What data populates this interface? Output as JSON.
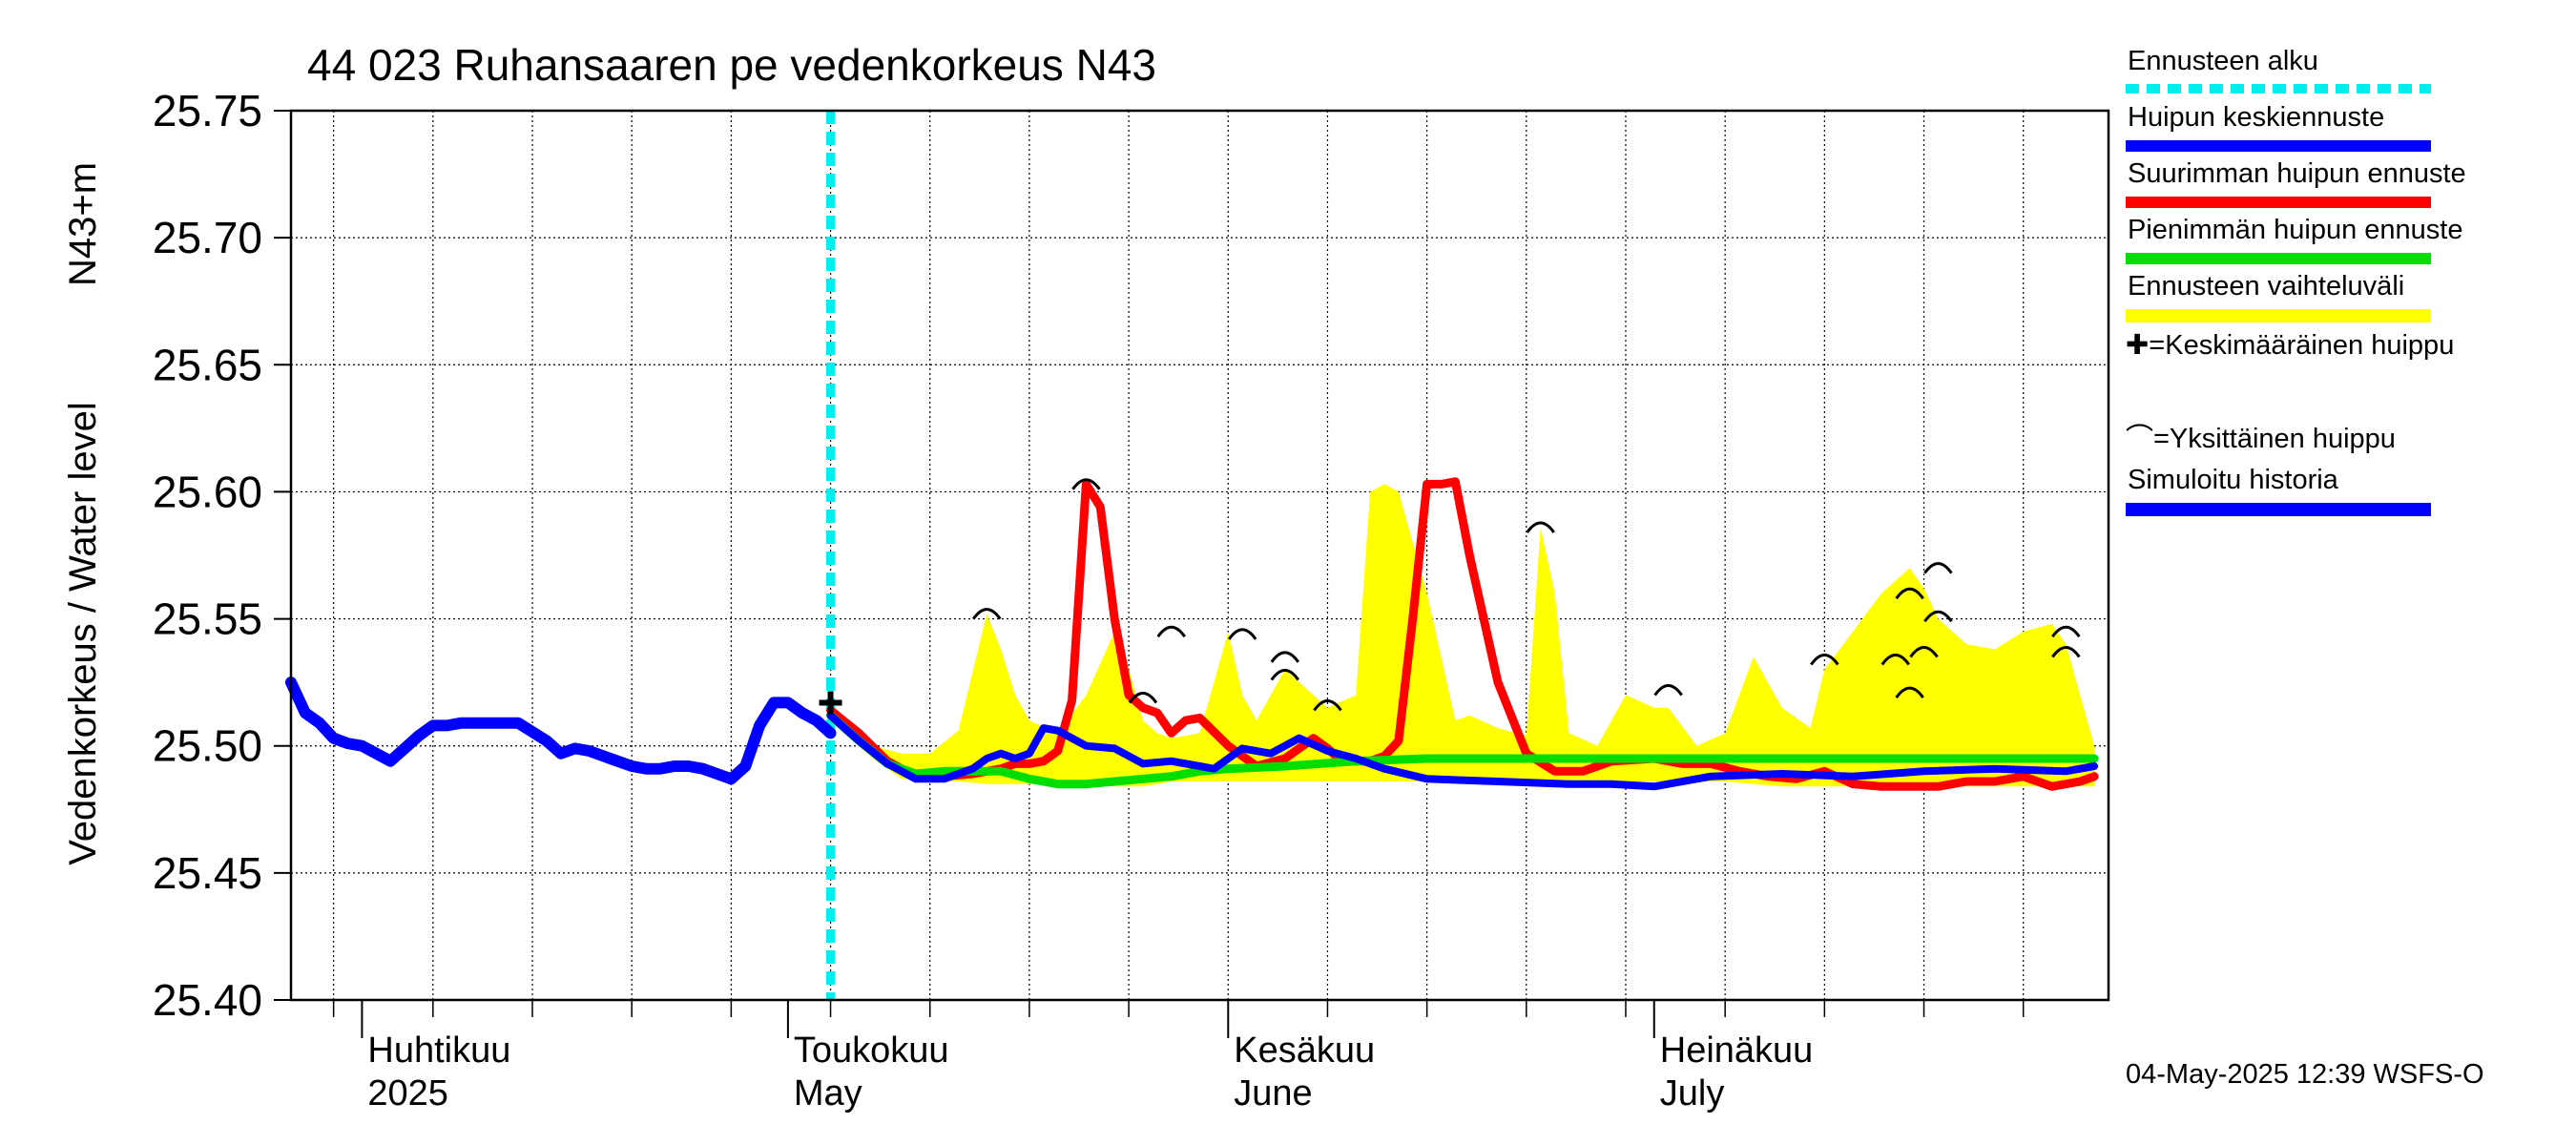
{
  "chart_data": {
    "type": "line",
    "title": "44 023 Ruhansaaren pe vedenkorkeus N43",
    "ylabel_left": "Vedenkorkeus / Water level",
    "ylabel_right": "N43+m",
    "ylim": [
      25.4,
      25.75
    ],
    "yticks": [
      "25.40",
      "25.45",
      "25.50",
      "25.55",
      "25.60",
      "25.65",
      "25.70",
      "25.75"
    ],
    "xlim": [
      "2025-03-27",
      "2025-08-02"
    ],
    "month_labels": [
      {
        "date": "2025-04-01",
        "fi": "Huhtikuu",
        "en": "2025"
      },
      {
        "date": "2025-05-01",
        "fi": "Toukokuu",
        "en": "May"
      },
      {
        "date": "2025-06-01",
        "fi": "Kesäkuu",
        "en": "June"
      },
      {
        "date": "2025-07-01",
        "fi": "Heinäkuu",
        "en": "July"
      }
    ],
    "grid": true,
    "forecast_start": "2025-05-04",
    "colors": {
      "forecast_start": "#00eeee",
      "mean_peak": "#0000ff",
      "max_peak": "#ff0000",
      "min_peak": "#00dd00",
      "range": "#ffff00",
      "history": "#0000ff"
    },
    "history": {
      "name": "Simuloitu historia",
      "x": [
        "2025-03-27",
        "2025-03-28",
        "2025-03-29",
        "2025-03-30",
        "2025-03-31",
        "2025-04-01",
        "2025-04-02",
        "2025-04-03",
        "2025-04-04",
        "2025-04-05",
        "2025-04-06",
        "2025-04-07",
        "2025-04-08",
        "2025-04-09",
        "2025-04-10",
        "2025-04-12",
        "2025-04-14",
        "2025-04-15",
        "2025-04-16",
        "2025-04-17",
        "2025-04-18",
        "2025-04-19",
        "2025-04-20",
        "2025-04-21",
        "2025-04-22",
        "2025-04-23",
        "2025-04-24",
        "2025-04-25",
        "2025-04-26",
        "2025-04-27",
        "2025-04-28",
        "2025-04-29",
        "2025-04-30",
        "2025-05-01",
        "2025-05-02",
        "2025-05-03",
        "2025-05-04"
      ],
      "y": [
        25.525,
        25.513,
        25.509,
        25.503,
        25.501,
        25.5,
        25.497,
        25.494,
        25.499,
        25.504,
        25.508,
        25.508,
        25.509,
        25.509,
        25.509,
        25.509,
        25.502,
        25.497,
        25.499,
        25.498,
        25.496,
        25.494,
        25.492,
        25.491,
        25.491,
        25.492,
        25.492,
        25.491,
        25.489,
        25.487,
        25.492,
        25.508,
        25.517,
        25.517,
        25.513,
        25.51,
        25.505
      ]
    },
    "range_band": {
      "name": "Ennusteen vaihteluväli",
      "x": [
        "2025-05-04",
        "2025-05-07",
        "2025-05-09",
        "2025-05-11",
        "2025-05-13",
        "2025-05-15",
        "2025-05-16",
        "2025-05-17",
        "2025-05-18",
        "2025-05-20",
        "2025-05-22",
        "2025-05-24",
        "2025-05-25",
        "2025-05-26",
        "2025-05-27",
        "2025-05-28",
        "2025-05-30",
        "2025-06-01",
        "2025-06-02",
        "2025-06-03",
        "2025-06-05",
        "2025-06-06",
        "2025-06-08",
        "2025-06-10",
        "2025-06-11",
        "2025-06-12",
        "2025-06-13",
        "2025-06-15",
        "2025-06-17",
        "2025-06-18",
        "2025-06-20",
        "2025-06-22",
        "2025-06-23",
        "2025-06-24",
        "2025-06-25",
        "2025-06-27",
        "2025-06-29",
        "2025-07-01",
        "2025-07-02",
        "2025-07-04",
        "2025-07-06",
        "2025-07-08",
        "2025-07-10",
        "2025-07-12",
        "2025-07-13",
        "2025-07-15",
        "2025-07-17",
        "2025-07-18",
        "2025-07-19",
        "2025-07-20",
        "2025-07-21",
        "2025-07-23",
        "2025-07-25",
        "2025-07-27",
        "2025-07-29",
        "2025-07-30",
        "2025-07-31",
        "2025-08-01"
      ],
      "upper": [
        25.513,
        25.5,
        25.497,
        25.497,
        25.506,
        25.552,
        25.538,
        25.52,
        25.51,
        25.505,
        25.52,
        25.545,
        25.53,
        25.51,
        25.505,
        25.503,
        25.505,
        25.545,
        25.52,
        25.51,
        25.53,
        25.525,
        25.515,
        25.52,
        25.6,
        25.603,
        25.6,
        25.56,
        25.51,
        25.512,
        25.507,
        25.504,
        25.586,
        25.56,
        25.505,
        25.5,
        25.52,
        25.515,
        25.515,
        25.5,
        25.505,
        25.535,
        25.515,
        25.507,
        25.53,
        25.545,
        25.56,
        25.565,
        25.57,
        25.562,
        25.55,
        25.54,
        25.538,
        25.545,
        25.548,
        25.54,
        25.52,
        25.5
      ],
      "lower": [
        25.51,
        25.495,
        25.487,
        25.486,
        25.486,
        25.485,
        25.485,
        25.485,
        25.485,
        25.485,
        25.485,
        25.484,
        25.484,
        25.484,
        25.485,
        25.486,
        25.486,
        25.486,
        25.486,
        25.486,
        25.486,
        25.486,
        25.486,
        25.486,
        25.486,
        25.486,
        25.486,
        25.486,
        25.486,
        25.486,
        25.486,
        25.486,
        25.486,
        25.486,
        25.486,
        25.486,
        25.486,
        25.486,
        25.486,
        25.486,
        25.486,
        25.485,
        25.484,
        25.484,
        25.484,
        25.484,
        25.484,
        25.484,
        25.484,
        25.484,
        25.484,
        25.484,
        25.484,
        25.484,
        25.484,
        25.484,
        25.484,
        25.484
      ]
    },
    "series": [
      {
        "name": "Suurimman huipun ennuste",
        "key": "max_peak",
        "x": [
          "2025-05-04",
          "2025-05-06",
          "2025-05-08",
          "2025-05-10",
          "2025-05-12",
          "2025-05-14",
          "2025-05-16",
          "2025-05-17",
          "2025-05-18",
          "2025-05-19",
          "2025-05-20",
          "2025-05-21",
          "2025-05-22",
          "2025-05-23",
          "2025-05-24",
          "2025-05-25",
          "2025-05-26",
          "2025-05-27",
          "2025-05-28",
          "2025-05-29",
          "2025-05-30",
          "2025-06-01",
          "2025-06-03",
          "2025-06-05",
          "2025-06-07",
          "2025-06-08",
          "2025-06-09",
          "2025-06-10",
          "2025-06-11",
          "2025-06-12",
          "2025-06-13",
          "2025-06-14",
          "2025-06-15",
          "2025-06-16",
          "2025-06-17",
          "2025-06-18",
          "2025-06-20",
          "2025-06-22",
          "2025-06-24",
          "2025-06-26",
          "2025-06-28",
          "2025-07-01",
          "2025-07-03",
          "2025-07-05",
          "2025-07-07",
          "2025-07-09",
          "2025-07-11",
          "2025-07-13",
          "2025-07-15",
          "2025-07-17",
          "2025-07-19",
          "2025-07-21",
          "2025-07-23",
          "2025-07-25",
          "2025-07-27",
          "2025-07-29",
          "2025-07-31",
          "2025-08-01"
        ],
        "y": [
          25.514,
          25.505,
          25.494,
          25.488,
          25.488,
          25.489,
          25.491,
          25.493,
          25.493,
          25.494,
          25.498,
          25.518,
          25.603,
          25.594,
          25.55,
          25.52,
          25.515,
          25.513,
          25.505,
          25.51,
          25.511,
          25.5,
          25.492,
          25.495,
          25.503,
          25.499,
          25.494,
          25.494,
          25.494,
          25.496,
          25.502,
          25.55,
          25.603,
          25.603,
          25.604,
          25.575,
          25.525,
          25.497,
          25.49,
          25.49,
          25.494,
          25.495,
          25.493,
          25.493,
          25.49,
          25.488,
          25.487,
          25.49,
          25.485,
          25.484,
          25.484,
          25.484,
          25.486,
          25.486,
          25.488,
          25.484,
          25.486,
          25.488
        ]
      },
      {
        "name": "Pienimmän huipun ennuste",
        "key": "min_peak",
        "x": [
          "2025-05-04",
          "2025-05-06",
          "2025-05-08",
          "2025-05-10",
          "2025-05-12",
          "2025-05-14",
          "2025-05-16",
          "2025-05-18",
          "2025-05-20",
          "2025-05-22",
          "2025-05-24",
          "2025-05-26",
          "2025-05-28",
          "2025-05-30",
          "2025-06-01",
          "2025-06-05",
          "2025-06-10",
          "2025-06-15",
          "2025-06-20",
          "2025-06-25",
          "2025-06-30",
          "2025-07-05",
          "2025-07-10",
          "2025-07-15",
          "2025-07-20",
          "2025-07-25",
          "2025-08-01"
        ],
        "y": [
          25.512,
          25.502,
          25.493,
          25.489,
          25.49,
          25.49,
          25.49,
          25.487,
          25.485,
          25.485,
          25.486,
          25.487,
          25.488,
          25.49,
          25.491,
          25.492,
          25.494,
          25.495,
          25.495,
          25.495,
          25.495,
          25.495,
          25.495,
          25.495,
          25.495,
          25.495,
          25.495
        ]
      },
      {
        "name": "Huipun keskiennuste",
        "key": "mean_peak",
        "x": [
          "2025-05-04",
          "2025-05-06",
          "2025-05-08",
          "2025-05-10",
          "2025-05-12",
          "2025-05-14",
          "2025-05-15",
          "2025-05-16",
          "2025-05-17",
          "2025-05-18",
          "2025-05-19",
          "2025-05-20",
          "2025-05-21",
          "2025-05-22",
          "2025-05-24",
          "2025-05-26",
          "2025-05-28",
          "2025-05-30",
          "2025-05-31",
          "2025-06-02",
          "2025-06-04",
          "2025-06-06",
          "2025-06-08",
          "2025-06-10",
          "2025-06-12",
          "2025-06-15",
          "2025-06-20",
          "2025-06-25",
          "2025-06-28",
          "2025-07-01",
          "2025-07-05",
          "2025-07-10",
          "2025-07-15",
          "2025-07-20",
          "2025-07-25",
          "2025-07-30",
          "2025-08-01"
        ],
        "y": [
          25.512,
          25.502,
          25.493,
          25.487,
          25.487,
          25.491,
          25.495,
          25.497,
          25.495,
          25.497,
          25.507,
          25.506,
          25.503,
          25.5,
          25.499,
          25.493,
          25.494,
          25.492,
          25.491,
          25.499,
          25.497,
          25.503,
          25.498,
          25.495,
          25.491,
          25.487,
          25.486,
          25.485,
          25.485,
          25.484,
          25.488,
          25.489,
          25.488,
          25.49,
          25.491,
          25.49,
          25.492
        ]
      }
    ],
    "mean_peak_marker": {
      "label": "✚=Keskimääräinen huippu",
      "x": "2025-05-04",
      "y": 25.517
    },
    "individual_peaks": {
      "label": "⌒=Yksittäinen huippu",
      "points": [
        {
          "x": "2025-05-15",
          "y": 25.553
        },
        {
          "x": "2025-05-22",
          "y": 25.604
        },
        {
          "x": "2025-05-26",
          "y": 25.52
        },
        {
          "x": "2025-05-28",
          "y": 25.546
        },
        {
          "x": "2025-06-02",
          "y": 25.545
        },
        {
          "x": "2025-06-05",
          "y": 25.536
        },
        {
          "x": "2025-06-05",
          "y": 25.529
        },
        {
          "x": "2025-06-08",
          "y": 25.517
        },
        {
          "x": "2025-06-23",
          "y": 25.587
        },
        {
          "x": "2025-07-02",
          "y": 25.523
        },
        {
          "x": "2025-07-13",
          "y": 25.535
        },
        {
          "x": "2025-07-18",
          "y": 25.535
        },
        {
          "x": "2025-07-19",
          "y": 25.561
        },
        {
          "x": "2025-07-19",
          "y": 25.522
        },
        {
          "x": "2025-07-20",
          "y": 25.538
        },
        {
          "x": "2025-07-21",
          "y": 25.552
        },
        {
          "x": "2025-07-21",
          "y": 25.571
        },
        {
          "x": "2025-07-30",
          "y": 25.546
        },
        {
          "x": "2025-07-30",
          "y": 25.538
        }
      ]
    }
  },
  "legend": {
    "forecast_start": "Ennusteen alku",
    "mean_peak": "Huipun keskiennuste",
    "max_peak": "Suurimman huipun ennuste",
    "min_peak": "Pienimmän huipun ennuste",
    "range": "Ennusteen vaihteluväli",
    "mean_marker": "✚=Keskimääräinen huippu",
    "single_peak": "⌒=Yksittäinen huippu",
    "history": "Simuloitu historia"
  },
  "footer": "04-May-2025 12:39 WSFS-O"
}
